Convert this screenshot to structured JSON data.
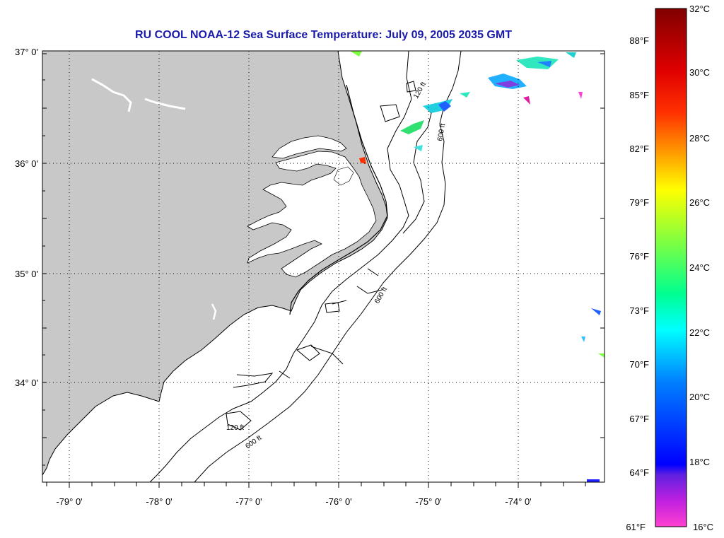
{
  "title": "RU COOL  NOAA-12  Sea Surface Temperature:  July 09, 2005 2035 GMT",
  "map": {
    "lat_labels": [
      "37° 0'",
      "36° 0'",
      "35° 0'",
      "34° 0'"
    ],
    "lon_labels": [
      "-79° 0'",
      "-78° 0'",
      "-77° 0'",
      "-76° 0'",
      "-75° 0'",
      "-74° 0'"
    ],
    "contour_labels": [
      "120 ft",
      "600 ft",
      "600 ft",
      "120 ft",
      "600 ft"
    ],
    "land_color": "#c8c8c8",
    "ocean_color": "#ffffff"
  },
  "colorbar": {
    "f_labels": [
      "88°F",
      "85°F",
      "82°F",
      "79°F",
      "76°F",
      "73°F",
      "70°F",
      "67°F",
      "64°F",
      "61°F"
    ],
    "c_labels": [
      "32°C",
      "30°C",
      "28°C",
      "26°C",
      "24°C",
      "22°C",
      "20°C",
      "18°C",
      "16°C"
    ]
  }
}
